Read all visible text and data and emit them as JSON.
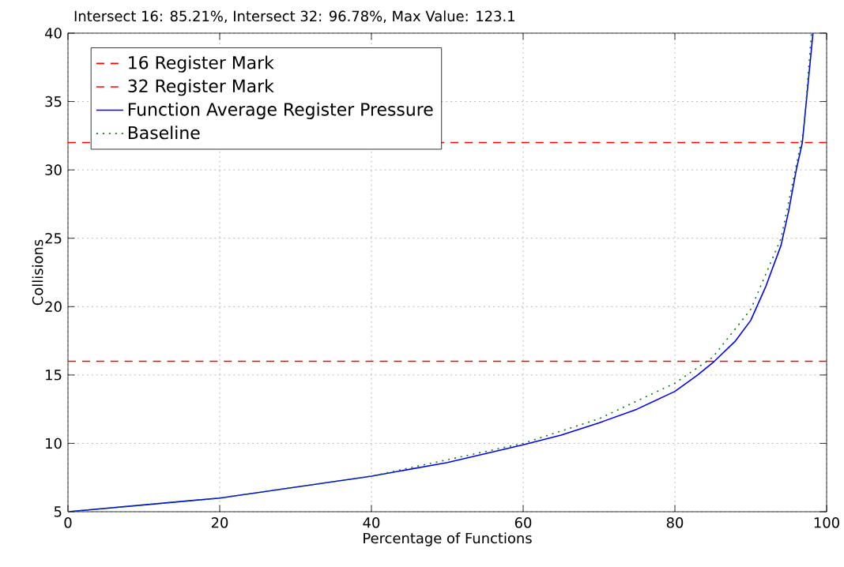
{
  "chart_data": {
    "type": "line",
    "title": "Intersect 16: 85.21%, Intersect 32: 96.78%, Max Value: 123.1",
    "xlabel": "Percentage of Functions",
    "ylabel": "Collisions",
    "xlim": [
      0,
      100
    ],
    "ylim": [
      5,
      40
    ],
    "xticks": [
      0,
      20,
      40,
      60,
      80,
      100
    ],
    "yticks": [
      5,
      10,
      15,
      20,
      25,
      30,
      35,
      40
    ],
    "grid": true,
    "legend": "top left",
    "marker": "none",
    "series": [
      {
        "name": "16 Register Mark",
        "color": "#ff0000",
        "line_style": "dashed",
        "x": [
          0,
          100
        ],
        "values": [
          16,
          16
        ]
      },
      {
        "name": "32 Register Mark",
        "color": "#ff0000",
        "line_style": "dashed",
        "x": [
          0,
          100
        ],
        "values": [
          32,
          32
        ]
      },
      {
        "name": "Function Average Register Pressure",
        "color": "#0000ff",
        "line_style": "solid",
        "x": [
          0,
          10,
          20,
          30,
          40,
          50,
          60,
          65,
          70,
          75,
          80,
          83,
          85.2,
          88,
          90,
          92,
          94,
          95,
          96,
          96.8,
          97.5,
          98.2
        ],
        "values": [
          5,
          5.5,
          6,
          6.8,
          7.6,
          8.6,
          9.9,
          10.6,
          11.5,
          12.5,
          13.8,
          15,
          16,
          17.5,
          19,
          21.5,
          24.5,
          27,
          30,
          32,
          36,
          40
        ]
      },
      {
        "name": "Baseline",
        "color": "#008000",
        "line_style": "dotted",
        "x": [
          0,
          20,
          40,
          60,
          70,
          80,
          85,
          90,
          94,
          97,
          98
        ],
        "values": [
          5,
          6,
          7.6,
          10,
          11.8,
          14.4,
          16.3,
          19.8,
          25,
          33,
          40
        ]
      }
    ]
  }
}
